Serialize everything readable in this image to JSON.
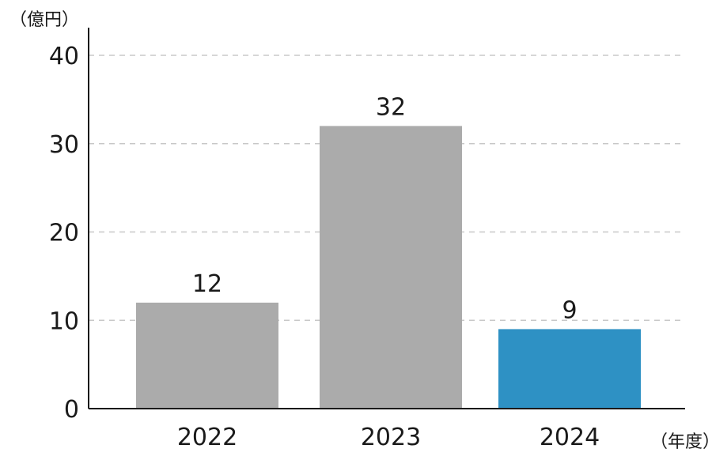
{
  "chart_data": {
    "type": "bar",
    "categories": [
      "2022",
      "2023",
      "2024"
    ],
    "values": [
      12,
      32,
      9
    ],
    "value_labels": [
      "12",
      "32",
      "9"
    ],
    "ylabel": "（億円）",
    "xlabel": "（年度）",
    "ylim": [
      0,
      40
    ],
    "yticks": [
      0,
      10,
      20,
      30,
      40
    ],
    "grid": true,
    "colors": [
      "#ababab",
      "#ababab",
      "#2e91c4"
    ]
  }
}
